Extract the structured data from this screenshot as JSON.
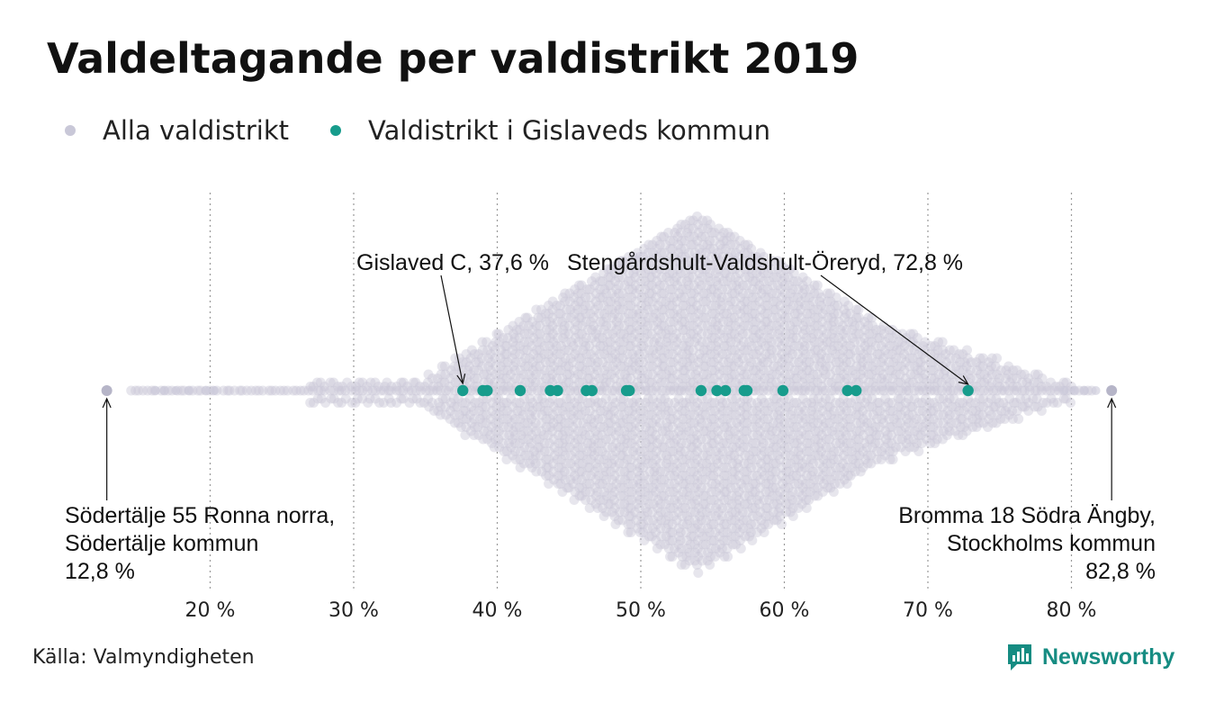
{
  "title": "Valdeltagande per valdistrikt 2019",
  "legend": [
    {
      "label": "Alla valdistrikt",
      "color": "#c9c8d8"
    },
    {
      "label": "Valdistrikt i Gislaveds kommun",
      "color": "#179c8c"
    }
  ],
  "source": "Källa: Valmyndigheten",
  "brand": "Newsworthy",
  "colors": {
    "all": "#c9c8d8",
    "highlight": "#179c8c",
    "brand": "#168c82"
  },
  "chart_data": {
    "type": "scatter",
    "subtype": "beeswarm",
    "x_range": [
      12,
      84
    ],
    "x_ticks": [
      20,
      30,
      40,
      50,
      60,
      70,
      80
    ],
    "x_tick_labels": [
      "20 %",
      "30 %",
      "40 %",
      "50 %",
      "60 %",
      "70 %",
      "80 %"
    ],
    "grid": "vertical-dotted",
    "legend_position": "top-left",
    "series": [
      {
        "name": "Alla valdistrikt",
        "color": "#c9c8d8",
        "distribution": "approximately 6300 districts, densest around 53–54 %, spanning 12.8 % to 82.8 %"
      },
      {
        "name": "Valdistrikt i Gislaveds kommun",
        "color": "#179c8c",
        "x": [
          37.6,
          39.0,
          39.3,
          41.6,
          43.7,
          44.2,
          46.2,
          46.6,
          49.0,
          49.2,
          54.2,
          55.3,
          55.9,
          57.2,
          57.4,
          59.9,
          64.4,
          65.0,
          72.8
        ]
      }
    ],
    "extremes": [
      {
        "x": 12.8,
        "color": "#c9c8d8"
      },
      {
        "x": 82.8,
        "color": "#c9c8d8"
      }
    ],
    "annotations": [
      {
        "lines": [
          "Gislaved C, 37,6 %"
        ]
      },
      {
        "lines": [
          "Stengårdshult-Valdshult-Öreryd, 72,8 %"
        ]
      },
      {
        "lines": [
          "Södertälje 55 Ronna norra,",
          "Södertälje kommun",
          "12,8 %"
        ]
      },
      {
        "lines": [
          "Bromma 18 Södra Ängby,",
          "Stockholms kommun",
          "82,8 %"
        ]
      }
    ]
  }
}
